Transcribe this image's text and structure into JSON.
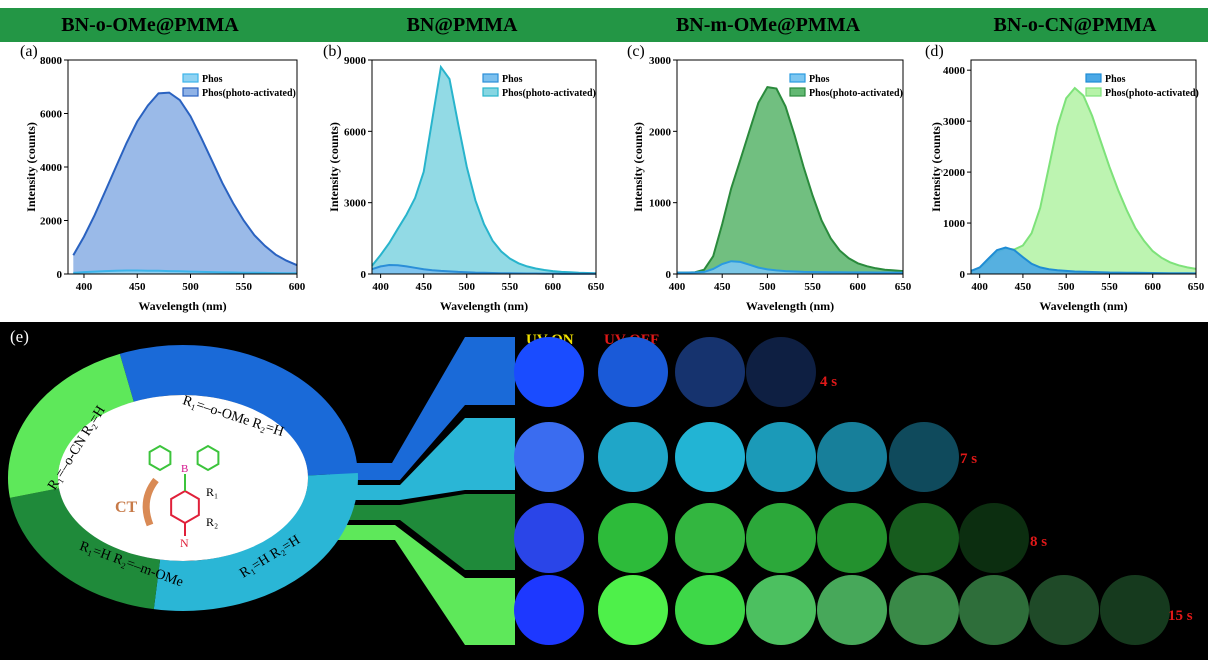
{
  "chart_data": [
    {
      "type": "area",
      "title": "BN-o-OMe@PMMA",
      "panel_label": "(a)",
      "x_label": "Wavelength (nm)",
      "y_label": "Intensity (counts)",
      "x": [
        390,
        400,
        410,
        420,
        430,
        440,
        450,
        460,
        470,
        480,
        490,
        500,
        510,
        520,
        530,
        540,
        550,
        560,
        570,
        580,
        590,
        600
      ],
      "series": [
        {
          "name": "Phos",
          "color": "#3cb4ea",
          "fill": "#8fd2f2",
          "values": [
            40,
            70,
            90,
            110,
            120,
            130,
            130,
            125,
            120,
            110,
            100,
            90,
            80,
            70,
            60,
            55,
            50,
            45,
            40,
            35,
            30,
            28
          ]
        },
        {
          "name": "Phos(photo-activated)",
          "color": "#2a62c0",
          "fill": "#8fb2e6",
          "values": [
            700,
            1400,
            2200,
            3100,
            4000,
            4900,
            5700,
            6300,
            6750,
            6780,
            6500,
            5900,
            5100,
            4250,
            3400,
            2650,
            2000,
            1450,
            1050,
            720,
            500,
            330
          ]
        }
      ],
      "xlim": [
        385,
        600
      ],
      "xticks": [
        400,
        450,
        500,
        550,
        600
      ],
      "ylim": [
        0,
        8000
      ],
      "yticks": [
        0,
        2000,
        4000,
        6000,
        8000
      ]
    },
    {
      "type": "area",
      "title": "BN@PMMA",
      "panel_label": "(b)",
      "x_label": "Wavelength (nm)",
      "y_label": "Intensity (counts)",
      "x": [
        390,
        400,
        410,
        420,
        430,
        440,
        450,
        460,
        470,
        480,
        490,
        500,
        510,
        520,
        530,
        540,
        550,
        560,
        570,
        580,
        590,
        600,
        610,
        620,
        630,
        640,
        650
      ],
      "series": [
        {
          "name": "Phos",
          "color": "#2b8ed8",
          "fill": "#7cc0ee",
          "values": [
            200,
            320,
            380,
            370,
            320,
            260,
            200,
            160,
            130,
            110,
            90,
            75,
            60,
            50,
            40,
            35,
            30,
            25,
            22,
            20,
            18,
            16,
            14,
            12,
            10,
            10,
            10
          ]
        },
        {
          "name": "Phos(photo-activated)",
          "color": "#28b4cc",
          "fill": "#86d6e2",
          "values": [
            350,
            800,
            1300,
            1900,
            2500,
            3200,
            4300,
            6500,
            8700,
            8200,
            6300,
            4500,
            3100,
            2100,
            1400,
            950,
            650,
            450,
            320,
            230,
            170,
            120,
            90,
            70,
            50,
            40,
            30
          ]
        }
      ],
      "xlim": [
        390,
        650
      ],
      "xticks": [
        400,
        450,
        500,
        550,
        600,
        650
      ],
      "ylim": [
        0,
        9000
      ],
      "yticks": [
        0,
        3000,
        6000,
        9000
      ]
    },
    {
      "type": "area",
      "title": "BN-m-OMe@PMMA",
      "panel_label": "(c)",
      "x_label": "Wavelength (nm)",
      "y_label": "Intensity (counts)",
      "x": [
        400,
        410,
        420,
        430,
        440,
        450,
        460,
        470,
        480,
        490,
        500,
        510,
        520,
        530,
        540,
        550,
        560,
        570,
        580,
        590,
        600,
        610,
        620,
        630,
        640,
        650
      ],
      "series": [
        {
          "name": "Phos",
          "color": "#2a9ae0",
          "fill": "#7cc6f0",
          "values": [
            20,
            20,
            22,
            30,
            70,
            140,
            180,
            170,
            130,
            90,
            65,
            50,
            40,
            35,
            30,
            28,
            26,
            25,
            24,
            23,
            22,
            22,
            21,
            21,
            20,
            20
          ]
        },
        {
          "name": "Phos(photo-activated)",
          "color": "#2a8a3c",
          "fill": "#62b872",
          "values": [
            20,
            20,
            25,
            60,
            250,
            700,
            1200,
            1600,
            2000,
            2400,
            2620,
            2600,
            2350,
            1950,
            1500,
            1100,
            750,
            500,
            330,
            220,
            150,
            110,
            80,
            60,
            50,
            40
          ]
        }
      ],
      "xlim": [
        400,
        650
      ],
      "xticks": [
        400,
        450,
        500,
        550,
        600,
        650
      ],
      "ylim": [
        0,
        3000
      ],
      "yticks": [
        0,
        1000,
        2000,
        3000
      ]
    },
    {
      "type": "area",
      "title": "BN-o-CN@PMMA",
      "panel_label": "(d)",
      "x_label": "Wavelength (nm)",
      "y_label": "Intensity (counts)",
      "x": [
        390,
        400,
        410,
        420,
        430,
        440,
        450,
        460,
        470,
        480,
        490,
        500,
        510,
        520,
        530,
        540,
        550,
        560,
        570,
        580,
        590,
        600,
        610,
        620,
        630,
        640,
        650
      ],
      "series": [
        {
          "name": "Phos",
          "color": "#1f8cd4",
          "fill": "#4aa8e6",
          "values": [
            60,
            130,
            300,
            470,
            520,
            470,
            330,
            200,
            130,
            95,
            75,
            60,
            50,
            45,
            40,
            35,
            30,
            28,
            26,
            24,
            22,
            20,
            18,
            16,
            15,
            14,
            12
          ]
        },
        {
          "name": "Phos(photo-activated)",
          "color": "#7ee27a",
          "fill": "#b6f3a8",
          "values": [
            60,
            120,
            250,
            430,
            500,
            480,
            560,
            800,
            1300,
            2100,
            2900,
            3450,
            3650,
            3500,
            3100,
            2600,
            2100,
            1650,
            1250,
            900,
            650,
            450,
            320,
            230,
            170,
            130,
            100
          ]
        }
      ],
      "xlim": [
        390,
        650
      ],
      "xticks": [
        400,
        450,
        500,
        550,
        600,
        650
      ],
      "ylim": [
        0,
        4200
      ],
      "yticks": [
        0,
        1000,
        2000,
        3000,
        4000
      ]
    }
  ],
  "panel_e": {
    "label": "(e)",
    "uv_on": "UV  ON",
    "uv_off": "UV OFF",
    "times": [
      "4 s",
      "7 s",
      "8 s",
      "15 s"
    ],
    "ring_labels": [
      "R₁=–o-OMe  R₂=H",
      "R₁=H  R₂=H",
      "R₁=H  R₂=–m-OMe",
      "R₁=–o-CN  R₂=H"
    ],
    "molecule": {
      "boron": "B",
      "nitrogen": "N",
      "r1": "R₁",
      "r2": "R₂",
      "ct": "CT"
    }
  }
}
